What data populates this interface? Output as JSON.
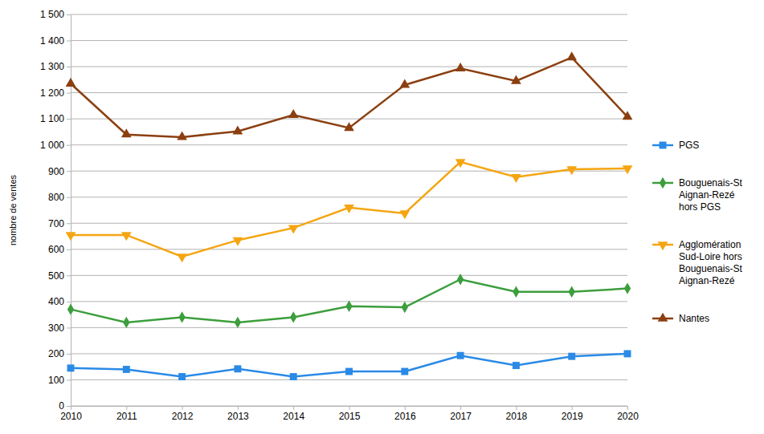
{
  "chart_data": {
    "type": "line",
    "y_label": "nombre de ventes",
    "x": [
      2010,
      2011,
      2012,
      2013,
      2014,
      2015,
      2016,
      2017,
      2018,
      2019,
      2020
    ],
    "xlim": [
      2010,
      2020
    ],
    "xticks": [
      2010,
      2011,
      2012,
      2013,
      2014,
      2015,
      2016,
      2017,
      2018,
      2019,
      2020
    ],
    "ylim": [
      0,
      1500
    ],
    "yticks": [
      0,
      100,
      200,
      300,
      400,
      500,
      600,
      700,
      800,
      900,
      {
        "value": 1000,
        "label": "1 000"
      },
      {
        "value": 1100,
        "label": "1 100"
      },
      {
        "value": 1200,
        "label": "1 200"
      },
      {
        "value": 1300,
        "label": "1 300"
      },
      {
        "value": 1400,
        "label": "1 400"
      },
      {
        "value": 1500,
        "label": "1 500"
      }
    ],
    "grid": true,
    "legend": "right",
    "series": [
      {
        "name": "PGS",
        "color": "#2a8ae6",
        "marker": "square",
        "values": [
          145,
          140,
          112,
          142,
          112,
          132,
          132,
          193,
          155,
          190,
          200
        ]
      },
      {
        "name": "Bouguenais-St Aignan-Rezé hors PGS",
        "color": "#3c9e3c",
        "marker": "diamond",
        "values": [
          370,
          320,
          340,
          320,
          340,
          382,
          378,
          485,
          437,
          437,
          450
        ]
      },
      {
        "name": "Agglomération Sud-Loire hors Bouguenais-St Aignan-Rezé",
        "color": "#f5a511",
        "marker": "triangle-down",
        "values": [
          655,
          655,
          572,
          635,
          682,
          760,
          738,
          935,
          877,
          907,
          910
        ]
      },
      {
        "name": "Nantes",
        "color": "#8b3f10",
        "marker": "triangle",
        "values": [
          1235,
          1040,
          1030,
          1052,
          1115,
          1065,
          1230,
          1293,
          1245,
          1335,
          1108
        ]
      }
    ]
  }
}
